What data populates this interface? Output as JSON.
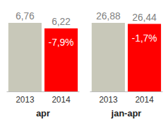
{
  "chart_data": [
    {
      "type": "bar",
      "title": "apr",
      "categories": [
        "2013",
        "2014"
      ],
      "values": [
        6.76,
        6.22
      ],
      "value_labels": [
        "6,76",
        "6,22"
      ],
      "colors": [
        "#c8c8b9",
        "#ff0000"
      ],
      "annotation": "-7,9%",
      "ylim": [
        0,
        6.76
      ],
      "data_labels": true,
      "tick_labels": "x",
      "grid": false
    },
    {
      "type": "bar",
      "title": "jan-apr",
      "categories": [
        "2013",
        "2014"
      ],
      "values": [
        26.88,
        26.44
      ],
      "value_labels": [
        "26,88",
        "26,44"
      ],
      "colors": [
        "#c8c8b9",
        "#ff0000"
      ],
      "annotation": "-1,7%",
      "ylim": [
        0,
        26.88
      ],
      "data_labels": true,
      "tick_labels": "x",
      "grid": false
    }
  ]
}
